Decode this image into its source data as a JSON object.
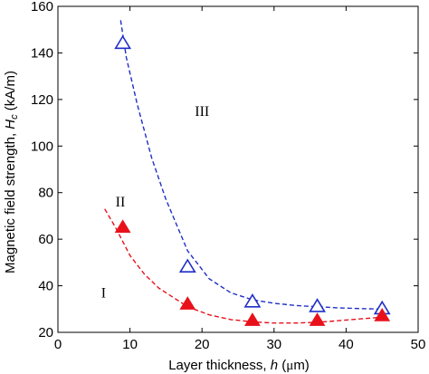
{
  "chart_data": {
    "type": "scatter",
    "xlabel": {
      "prefix": "Layer thickness, ",
      "symbol": "h",
      "unit_open": " (",
      "unit_mu": "μ",
      "unit_rest": "m)"
    },
    "ylabel": {
      "prefix": "Magnetic field strength, ",
      "symbol": "H",
      "subscript": "c",
      "unit": " (kA/m)"
    },
    "xlim": [
      0,
      50
    ],
    "ylim": [
      20,
      160
    ],
    "xticks": [
      0,
      10,
      20,
      30,
      40,
      50
    ],
    "yticks": [
      20,
      40,
      60,
      80,
      100,
      120,
      140,
      160
    ],
    "grid": false,
    "series": [
      {
        "marker": "open-triangle",
        "color": "#1f2fc8",
        "x": [
          9,
          18,
          27,
          36,
          45
        ],
        "y": [
          144,
          48,
          33,
          31,
          30
        ],
        "fit": {
          "style": "dashed",
          "x": [
            8.7,
            9.5,
            11,
            13,
            15,
            18,
            21,
            24,
            27,
            30,
            33,
            36,
            39,
            42,
            45
          ],
          "y": [
            154,
            138,
            118,
            95,
            77,
            55,
            43,
            37,
            34,
            32.5,
            31.5,
            31,
            30.5,
            30.2,
            30
          ]
        }
      },
      {
        "marker": "filled-triangle",
        "color": "#e8111b",
        "x": [
          9,
          18,
          27,
          36,
          45
        ],
        "y": [
          65,
          32,
          25,
          25,
          27
        ],
        "fit": {
          "style": "dashed",
          "x": [
            6.5,
            8,
            10,
            12,
            14,
            16,
            18,
            21,
            24,
            27,
            30,
            33,
            36,
            39,
            42,
            45
          ],
          "y": [
            73,
            65,
            53,
            45,
            39,
            35,
            31,
            27.5,
            25.5,
            24.5,
            24,
            24,
            24.3,
            25,
            25.8,
            26.5
          ]
        }
      }
    ],
    "annotations": [
      {
        "text": "III",
        "x": 19,
        "y": 113
      },
      {
        "text": "II",
        "x": 8,
        "y": 74
      },
      {
        "text": "I",
        "x": 6,
        "y": 35
      }
    ]
  }
}
